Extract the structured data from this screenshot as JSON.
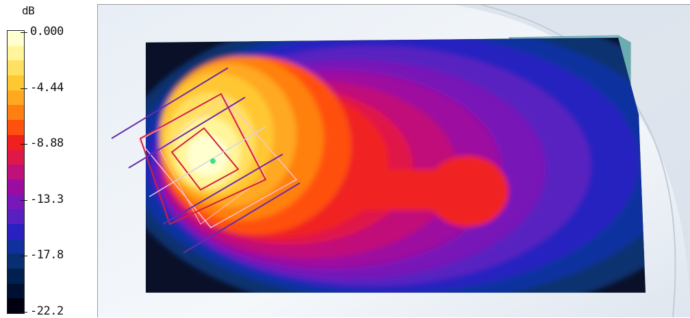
{
  "legend": {
    "unit": "dB",
    "ticks": [
      "0.000",
      "-4.44",
      "-8.88",
      "-13.3",
      "-17.8",
      "-22.2"
    ],
    "bands": [
      "#ffffd0",
      "#fff59a",
      "#ffe060",
      "#ffc830",
      "#ffa820",
      "#ff8010",
      "#ff5010",
      "#f02020",
      "#e01848",
      "#c0107a",
      "#9c0ca0",
      "#7818b8",
      "#5820c0",
      "#2820c0",
      "#1030a0",
      "#083070",
      "#002050",
      "#001030",
      "#000010"
    ]
  },
  "scene": {
    "colors": {
      "background": "#f0f4f8",
      "part_fill": "#88c8cc",
      "grid_red": "#d02040",
      "grid_pink": "#ffc0d0",
      "lines_purple": "#6a2aa8",
      "marker": "#40e080"
    },
    "marker_icon": "green-dot-icon"
  }
}
